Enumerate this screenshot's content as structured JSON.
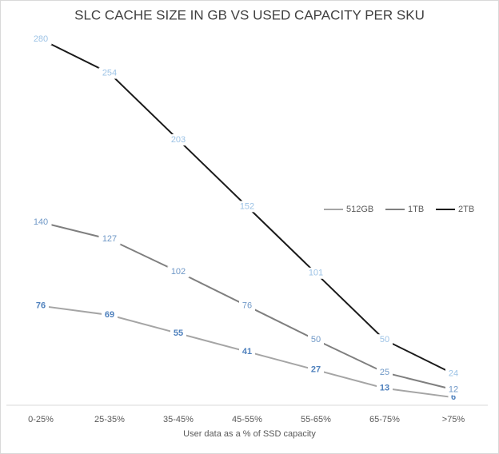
{
  "chart_data": {
    "type": "line",
    "title": "SLC CACHE SIZE IN GB VS USED CAPACITY PER SKU",
    "x_label": "User data as a % of SSD capacity",
    "categories": [
      "0-25%",
      "25-35%",
      "35-45%",
      "45-55%",
      "55-65%",
      "65-75%",
      ">75%"
    ],
    "ylim": [
      0,
      280
    ],
    "series": [
      {
        "name": "512GB",
        "color": "#a5a5a5",
        "label_color": "#4f81bd",
        "values": [
          76,
          69,
          55,
          41,
          27,
          13,
          6
        ]
      },
      {
        "name": "1TB",
        "color": "#7f7f7f",
        "label_color": "#6f98c7",
        "values": [
          140,
          127,
          102,
          76,
          50,
          25,
          12
        ]
      },
      {
        "name": "2TB",
        "color": "#1a1a1a",
        "label_color": "#9dc3e6",
        "values": [
          280,
          254,
          203,
          152,
          101,
          50,
          24
        ]
      }
    ]
  }
}
